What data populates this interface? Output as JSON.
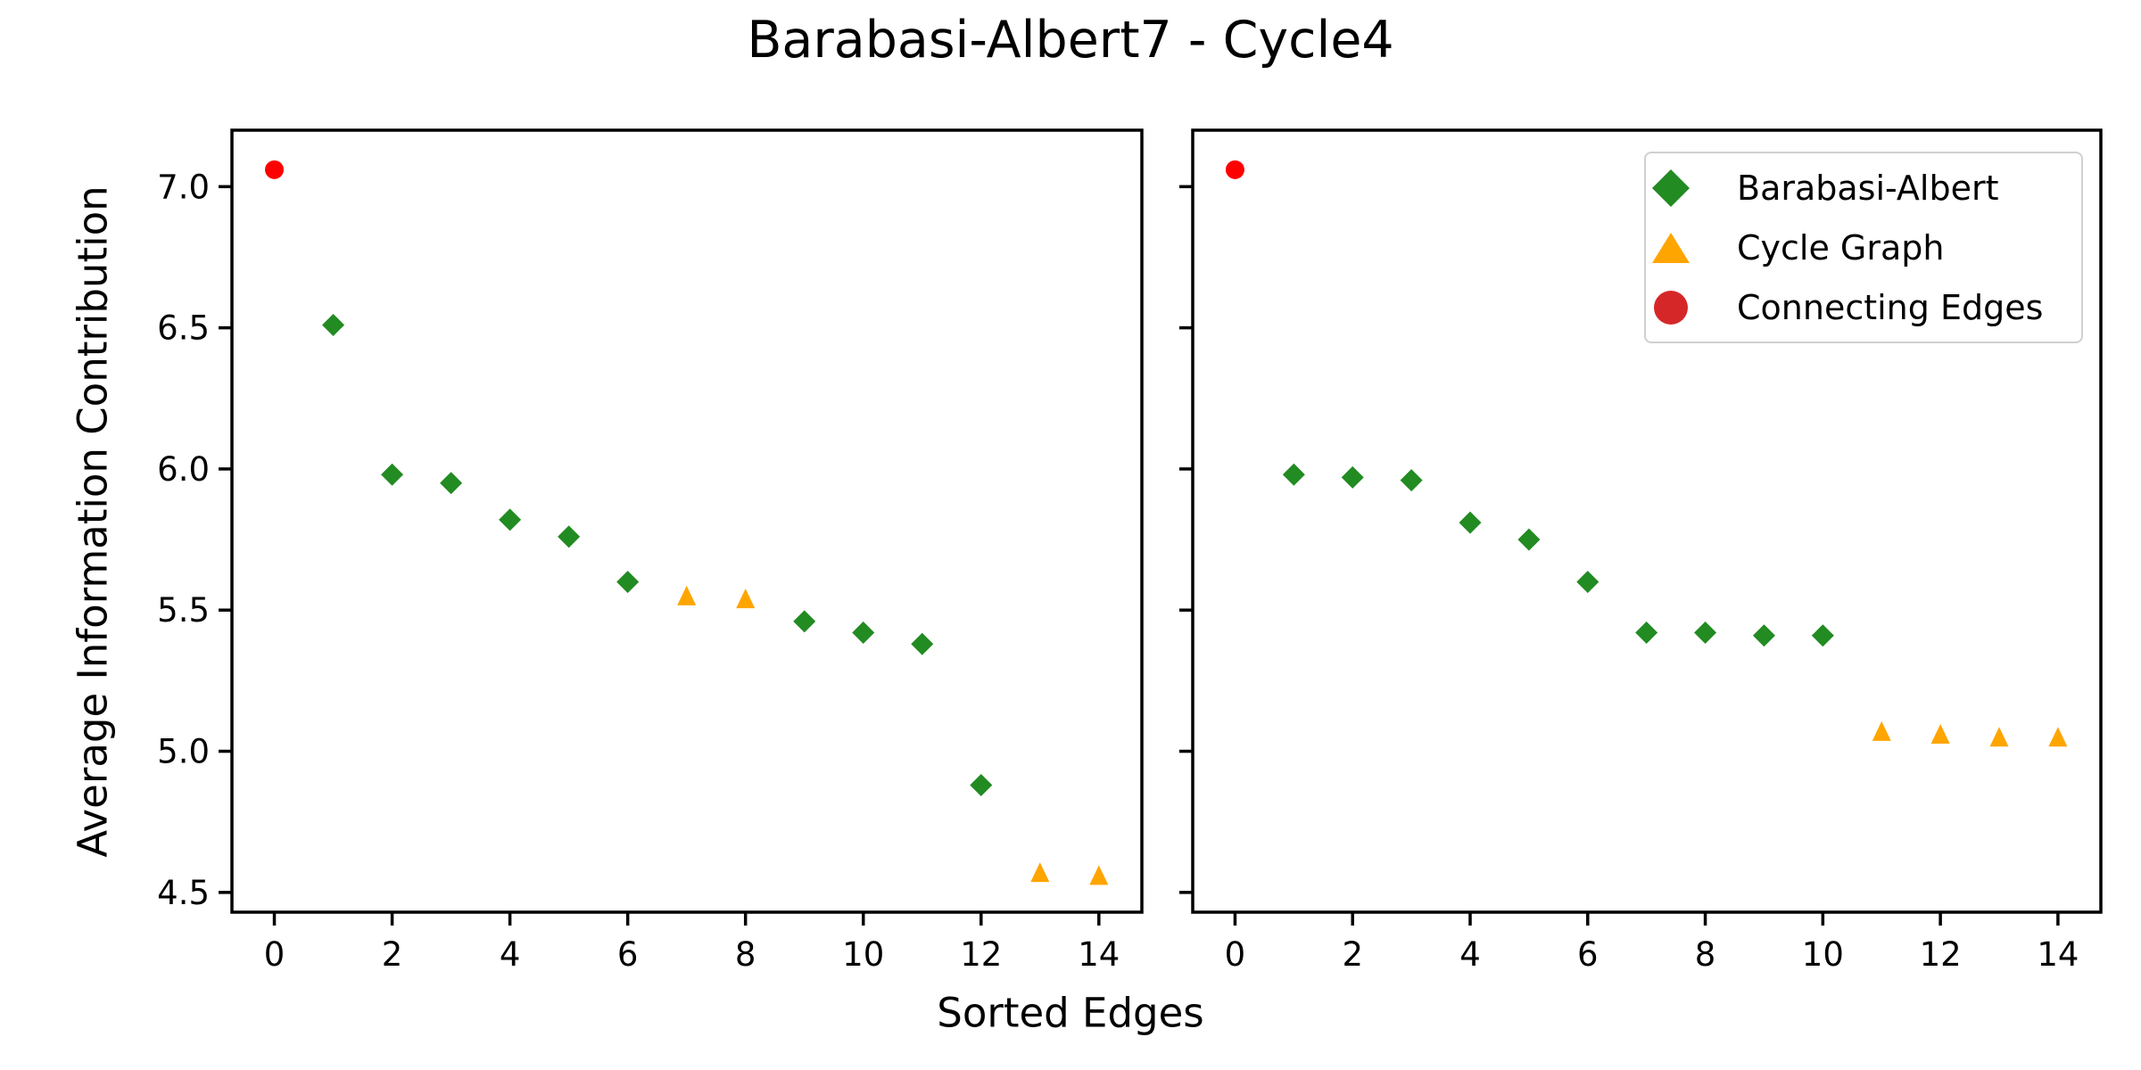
{
  "figure": {
    "background": "#ffffff",
    "text_color": "#000000",
    "spine_color": "#000000"
  },
  "chart_data": {
    "type": "scatter",
    "title": "Barabasi-Albert7 - Cycle4",
    "xlabel": "Sorted Edges",
    "ylabel": "Average Information Contribution",
    "grid": false,
    "xlim": [
      -0.72,
      14.73
    ],
    "ylim": [
      4.43,
      7.2
    ],
    "xticks": [
      0,
      2,
      4,
      6,
      8,
      10,
      12,
      14
    ],
    "yticks": [
      4.5,
      5.0,
      5.5,
      6.0,
      6.5,
      7.0
    ],
    "ytick_labels_on_left_subplot_only": true,
    "series_styles": {
      "barabasi": {
        "marker": "diamond",
        "color": "#228B22"
      },
      "cycle": {
        "marker": "triangle",
        "color": "#FFA500"
      },
      "connecting": {
        "marker": "circle",
        "color": "#FF0000"
      }
    },
    "legend": [
      {
        "label": "Barabasi-Albert",
        "marker": "diamond",
        "color": "#228B22"
      },
      {
        "label": "Cycle Graph",
        "marker": "triangle",
        "color": "#FFA500"
      },
      {
        "label": "Connecting Edges",
        "marker": "circle",
        "color": "#D62728"
      }
    ],
    "legend_position": "upper-right-of-right-subplot",
    "subplots": [
      {
        "name": "left",
        "points": [
          {
            "x": 0,
            "y": 7.06,
            "series": "connecting"
          },
          {
            "x": 1,
            "y": 6.51,
            "series": "barabasi"
          },
          {
            "x": 2,
            "y": 5.98,
            "series": "barabasi"
          },
          {
            "x": 3,
            "y": 5.95,
            "series": "barabasi"
          },
          {
            "x": 4,
            "y": 5.82,
            "series": "barabasi"
          },
          {
            "x": 5,
            "y": 5.76,
            "series": "barabasi"
          },
          {
            "x": 6,
            "y": 5.6,
            "series": "barabasi"
          },
          {
            "x": 7,
            "y": 5.55,
            "series": "cycle"
          },
          {
            "x": 8,
            "y": 5.54,
            "series": "cycle"
          },
          {
            "x": 9,
            "y": 5.46,
            "series": "barabasi"
          },
          {
            "x": 10,
            "y": 5.42,
            "series": "barabasi"
          },
          {
            "x": 11,
            "y": 5.38,
            "series": "barabasi"
          },
          {
            "x": 12,
            "y": 4.88,
            "series": "barabasi"
          },
          {
            "x": 13,
            "y": 4.57,
            "series": "cycle"
          },
          {
            "x": 14,
            "y": 4.56,
            "series": "cycle"
          }
        ]
      },
      {
        "name": "right",
        "points": [
          {
            "x": 0,
            "y": 7.06,
            "series": "connecting"
          },
          {
            "x": 1,
            "y": 5.98,
            "series": "barabasi"
          },
          {
            "x": 2,
            "y": 5.97,
            "series": "barabasi"
          },
          {
            "x": 3,
            "y": 5.96,
            "series": "barabasi"
          },
          {
            "x": 4,
            "y": 5.81,
            "series": "barabasi"
          },
          {
            "x": 5,
            "y": 5.75,
            "series": "barabasi"
          },
          {
            "x": 6,
            "y": 5.6,
            "series": "barabasi"
          },
          {
            "x": 7,
            "y": 5.42,
            "series": "barabasi"
          },
          {
            "x": 8,
            "y": 5.42,
            "series": "barabasi"
          },
          {
            "x": 9,
            "y": 5.41,
            "series": "barabasi"
          },
          {
            "x": 10,
            "y": 5.41,
            "series": "barabasi"
          },
          {
            "x": 11,
            "y": 5.07,
            "series": "cycle"
          },
          {
            "x": 12,
            "y": 5.06,
            "series": "cycle"
          },
          {
            "x": 13,
            "y": 5.05,
            "series": "cycle"
          },
          {
            "x": 14,
            "y": 5.05,
            "series": "cycle"
          }
        ]
      }
    ]
  }
}
